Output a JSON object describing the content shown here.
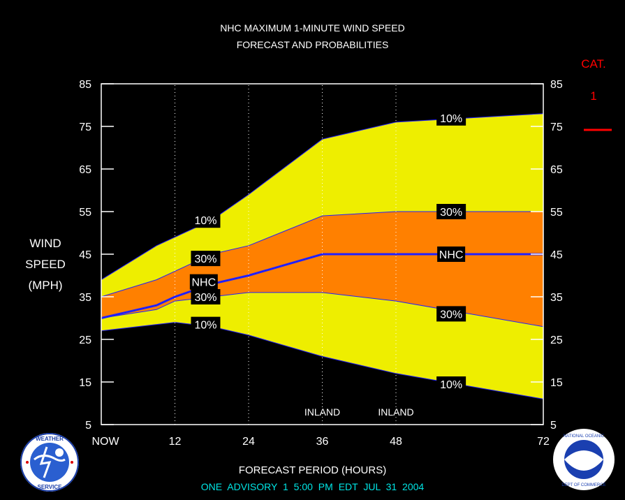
{
  "header": {
    "title_line1": "NHC MAXIMUM 1-MINUTE WIND SPEED",
    "title_line2": "FORECAST AND PROBABILITIES"
  },
  "ylabel": [
    "WIND",
    "SPEED",
    "(MPH)"
  ],
  "category": {
    "title": "CAT.",
    "value": "1"
  },
  "xlabel": "FORECAST PERIOD (HOURS)",
  "footer": "ONE   ADVISORY  1  5:00  PM  EDT  JUL  31  2004",
  "colors": {
    "outer_band": "#eeee00",
    "inner_band": "#ff8000",
    "nhc_line": "#2020ff",
    "background": "#000000",
    "category_marker": "#ff0000",
    "footer_text": "#00e5e5"
  },
  "logos": {
    "left": "nws-logo",
    "left_text": "NATIONAL WEATHER SERVICE",
    "right": "noaa-logo",
    "right_text": "NOAA"
  },
  "chart_data": {
    "type": "area",
    "xlim": [
      0,
      72
    ],
    "ylim": [
      5,
      85
    ],
    "yticks": [
      5,
      15,
      25,
      35,
      45,
      55,
      65,
      75,
      85
    ],
    "xticks": [
      {
        "x": 0,
        "label": "NOW"
      },
      {
        "x": 12,
        "label": "12"
      },
      {
        "x": 24,
        "label": "24"
      },
      {
        "x": 36,
        "label": "36"
      },
      {
        "x": 48,
        "label": "48"
      },
      {
        "x": 72,
        "label": "72"
      }
    ],
    "gridlines_x": [
      12,
      24,
      36,
      48
    ],
    "x": [
      0,
      9,
      12,
      18,
      24,
      36,
      48,
      72
    ],
    "series": [
      {
        "name": "10%",
        "role": "upper",
        "values": [
          39,
          47,
          49,
          53,
          59,
          72,
          76,
          78
        ]
      },
      {
        "name": "30%",
        "role": "upper",
        "values": [
          35,
          39,
          41,
          45,
          47,
          54,
          55,
          55
        ]
      },
      {
        "name": "NHC",
        "role": "forecast",
        "values": [
          30,
          33,
          35,
          38,
          40,
          45,
          45,
          45
        ]
      },
      {
        "name": "30%",
        "role": "lower",
        "values": [
          30,
          32,
          34,
          35,
          36,
          36,
          34,
          28
        ]
      },
      {
        "name": "10%",
        "role": "lower",
        "values": [
          27,
          28.5,
          29,
          28,
          26,
          21,
          17,
          11
        ]
      }
    ],
    "band_labels": [
      {
        "text": "10%",
        "x": 17,
        "y": 53
      },
      {
        "text": "30%",
        "x": 17,
        "y": 44
      },
      {
        "text": "NHC",
        "x": 16.7,
        "y": 38.5
      },
      {
        "text": "30%",
        "x": 17,
        "y": 35
      },
      {
        "text": "10%",
        "x": 17,
        "y": 28.5
      },
      {
        "text": "10%",
        "x": 57,
        "y": 77
      },
      {
        "text": "30%",
        "x": 57,
        "y": 55
      },
      {
        "text": "NHC",
        "x": 57,
        "y": 45
      },
      {
        "text": "30%",
        "x": 57,
        "y": 31
      },
      {
        "text": "10%",
        "x": 57,
        "y": 14.5
      }
    ],
    "annotations": [
      {
        "text": "INLAND",
        "x": 36
      },
      {
        "text": "INLAND",
        "x": 48
      }
    ]
  }
}
